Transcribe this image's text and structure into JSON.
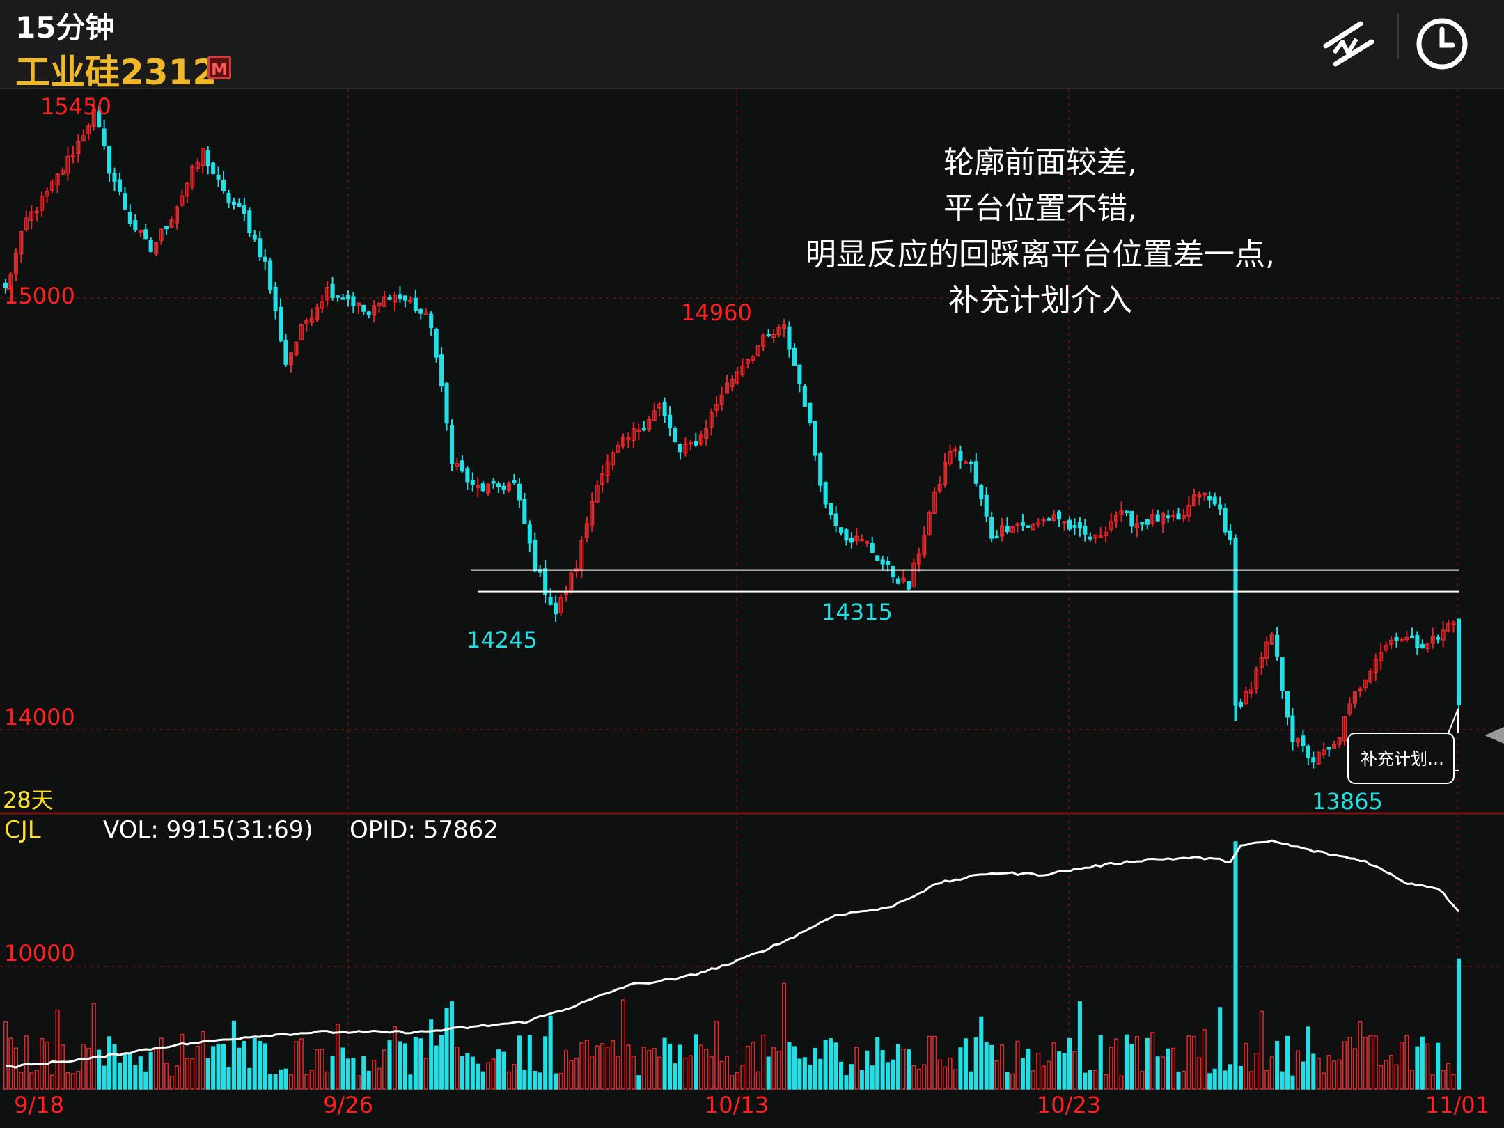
{
  "header": {
    "period": "15分钟",
    "symbol": "工业硅2312",
    "badge": "M",
    "icons": [
      "drawing-tool-icon",
      "clock-icon"
    ]
  },
  "indicator": {
    "name": "CJL",
    "vol": "VOL: 9915(31:69)",
    "opid": "OPID: 57862"
  },
  "colors": {
    "up": "#e8262a",
    "down": "#22e0e6",
    "grid": "#5a1010",
    "label": "#ff2020",
    "title": "#f0b828",
    "oi_line": "#ffffff"
  },
  "chart_data": {
    "type": "candlestick",
    "interval": "15分钟",
    "contract": "工业硅2312",
    "price_axis": {
      "ticks": [
        {
          "value": 15000,
          "label": "15000"
        },
        {
          "value": 14000,
          "label": "14000"
        }
      ],
      "ylim": [
        13780,
        15520
      ]
    },
    "x_ticks": [
      "9/18",
      "9/26",
      "10/13",
      "10/23",
      "11/01"
    ],
    "annotations": {
      "high": "15450",
      "low": "13865",
      "peak2": "14960",
      "low1": "14245",
      "low2": "14315",
      "days": "28天"
    },
    "support_lines": [
      14370,
      14320,
      13905
    ],
    "note": [
      "轮廓前面较差,",
      "平台位置不错,",
      "明显反应的回踩离平台位置差一点,",
      "补充计划介入"
    ],
    "plan_label": "补充计划…",
    "volume_axis": {
      "tick": 10000,
      "label": "10000",
      "ylim": [
        0,
        30000
      ]
    },
    "anchors": [
      {
        "i": 0,
        "p": 15020
      },
      {
        "i": 4,
        "p": 15180
      },
      {
        "i": 8,
        "p": 15240
      },
      {
        "i": 14,
        "p": 15360
      },
      {
        "i": 17,
        "p": 15430
      },
      {
        "i": 20,
        "p": 15300
      },
      {
        "i": 24,
        "p": 15180
      },
      {
        "i": 28,
        "p": 15110
      },
      {
        "i": 32,
        "p": 15190
      },
      {
        "i": 38,
        "p": 15340
      },
      {
        "i": 42,
        "p": 15240
      },
      {
        "i": 46,
        "p": 15190
      },
      {
        "i": 50,
        "p": 15080
      },
      {
        "i": 54,
        "p": 14850
      },
      {
        "i": 58,
        "p": 14950
      },
      {
        "i": 62,
        "p": 15020
      },
      {
        "i": 66,
        "p": 15000
      },
      {
        "i": 70,
        "p": 14960
      },
      {
        "i": 74,
        "p": 15010
      },
      {
        "i": 78,
        "p": 14990
      },
      {
        "i": 82,
        "p": 14940
      },
      {
        "i": 86,
        "p": 14630
      },
      {
        "i": 90,
        "p": 14560
      },
      {
        "i": 94,
        "p": 14560
      },
      {
        "i": 98,
        "p": 14570
      },
      {
        "i": 102,
        "p": 14380
      },
      {
        "i": 106,
        "p": 14270
      },
      {
        "i": 110,
        "p": 14380
      },
      {
        "i": 114,
        "p": 14580
      },
      {
        "i": 118,
        "p": 14650
      },
      {
        "i": 122,
        "p": 14700
      },
      {
        "i": 126,
        "p": 14750
      },
      {
        "i": 130,
        "p": 14640
      },
      {
        "i": 134,
        "p": 14680
      },
      {
        "i": 138,
        "p": 14780
      },
      {
        "i": 142,
        "p": 14850
      },
      {
        "i": 146,
        "p": 14900
      },
      {
        "i": 150,
        "p": 14930
      },
      {
        "i": 154,
        "p": 14760
      },
      {
        "i": 158,
        "p": 14520
      },
      {
        "i": 162,
        "p": 14450
      },
      {
        "i": 166,
        "p": 14430
      },
      {
        "i": 170,
        "p": 14370
      },
      {
        "i": 174,
        "p": 14330
      },
      {
        "i": 178,
        "p": 14500
      },
      {
        "i": 182,
        "p": 14650
      },
      {
        "i": 186,
        "p": 14610
      },
      {
        "i": 190,
        "p": 14450
      },
      {
        "i": 194,
        "p": 14480
      },
      {
        "i": 198,
        "p": 14470
      },
      {
        "i": 202,
        "p": 14500
      },
      {
        "i": 206,
        "p": 14460
      },
      {
        "i": 210,
        "p": 14440
      },
      {
        "i": 214,
        "p": 14500
      },
      {
        "i": 218,
        "p": 14480
      },
      {
        "i": 222,
        "p": 14490
      },
      {
        "i": 226,
        "p": 14480
      },
      {
        "i": 230,
        "p": 14550
      },
      {
        "i": 234,
        "p": 14510
      },
      {
        "i": 236,
        "p": 14430
      },
      {
        "i": 237,
        "p": 14050
      },
      {
        "i": 240,
        "p": 14100
      },
      {
        "i": 244,
        "p": 14220
      },
      {
        "i": 248,
        "p": 13980
      },
      {
        "i": 252,
        "p": 13930
      },
      {
        "i": 256,
        "p": 13960
      },
      {
        "i": 260,
        "p": 14080
      },
      {
        "i": 264,
        "p": 14170
      },
      {
        "i": 268,
        "p": 14220
      },
      {
        "i": 272,
        "p": 14200
      },
      {
        "i": 276,
        "p": 14210
      },
      {
        "i": 279,
        "p": 14260
      },
      {
        "i": 280,
        "p": 14050
      }
    ],
    "oi_anchors": [
      {
        "i": 0,
        "v": 2600
      },
      {
        "i": 16,
        "v": 3600
      },
      {
        "i": 32,
        "v": 5200
      },
      {
        "i": 48,
        "v": 6300
      },
      {
        "i": 60,
        "v": 6800
      },
      {
        "i": 80,
        "v": 6800
      },
      {
        "i": 90,
        "v": 7400
      },
      {
        "i": 100,
        "v": 8000
      },
      {
        "i": 110,
        "v": 10000
      },
      {
        "i": 120,
        "v": 12400
      },
      {
        "i": 130,
        "v": 13200
      },
      {
        "i": 140,
        "v": 15000
      },
      {
        "i": 150,
        "v": 17600
      },
      {
        "i": 160,
        "v": 20800
      },
      {
        "i": 170,
        "v": 21600
      },
      {
        "i": 180,
        "v": 24600
      },
      {
        "i": 190,
        "v": 25800
      },
      {
        "i": 200,
        "v": 25600
      },
      {
        "i": 210,
        "v": 26600
      },
      {
        "i": 220,
        "v": 27400
      },
      {
        "i": 230,
        "v": 27600
      },
      {
        "i": 236,
        "v": 27200
      },
      {
        "i": 238,
        "v": 29000
      },
      {
        "i": 244,
        "v": 29600
      },
      {
        "i": 252,
        "v": 28400
      },
      {
        "i": 262,
        "v": 27200
      },
      {
        "i": 270,
        "v": 24600
      },
      {
        "i": 276,
        "v": 24000
      },
      {
        "i": 280,
        "v": 21300
      }
    ],
    "n_bars": 281
  }
}
